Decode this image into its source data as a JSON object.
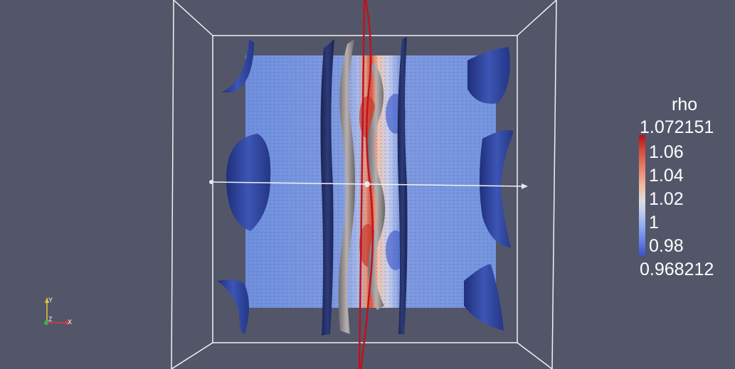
{
  "colors": {
    "background": "#535669",
    "box_outline": "#f2f2f2",
    "slice_base": "#7f9be0",
    "isosurface_blue": "#243a8a",
    "isosurface_gray": "#8f8a8c",
    "center_line": "#c0121d",
    "legend_max_color": "#b4101e",
    "legend_min_color": "#3f4fc9",
    "axis_x": "#e23a3a",
    "axis_y": "#e4c43a",
    "axis_z": "#3ab24a"
  },
  "legend": {
    "title": "rho",
    "range_max": "1.072151",
    "range_min": "0.968212",
    "ticks": [
      "1.06",
      "1.04",
      "1.02",
      "1",
      "0.98"
    ]
  },
  "axes": {
    "x_label": "X",
    "y_label": "Y",
    "z_label": "Z"
  }
}
